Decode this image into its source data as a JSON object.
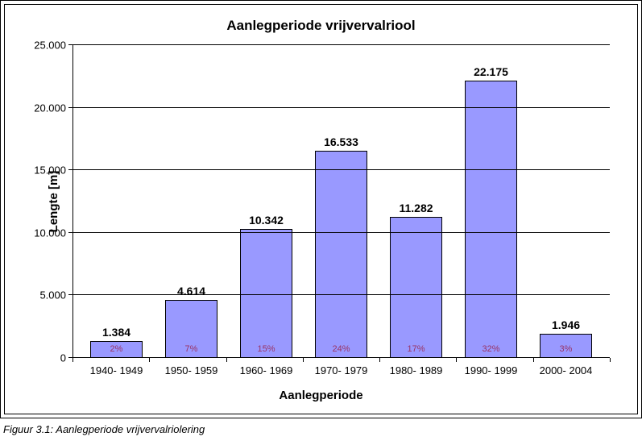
{
  "chart": {
    "type": "bar",
    "title": "Aanlegperiode  vrijvervalriool",
    "title_fontsize": 17,
    "xlabel": "Aanlegperiode",
    "ylabel": "Lengte [m]",
    "label_fontsize": 15,
    "ylim": [
      0,
      25000
    ],
    "ytick_step": 5000,
    "ytick_labels": [
      "0",
      "5.000",
      "10.000",
      "15.000",
      "20.000",
      "25.000"
    ],
    "categories": [
      "1940- 1949",
      "1950- 1959",
      "1960- 1969",
      "1970- 1979",
      "1980- 1989",
      "1990- 1999",
      "2000- 2004"
    ],
    "values": [
      1384,
      4614,
      10342,
      16533,
      11282,
      22175,
      1946
    ],
    "value_labels": [
      "1.384",
      "4.614",
      "10.342",
      "16.533",
      "11.282",
      "22.175",
      "1.946"
    ],
    "percentages": [
      "2%",
      "7%",
      "15%",
      "24%",
      "17%",
      "32%",
      "3%"
    ],
    "bar_color": "#9999ff",
    "bar_border_color": "#000000",
    "bar_width": 0.7,
    "grid_color": "#000000",
    "background_color": "#ffffff",
    "pct_text_color": "#993366",
    "tick_fontsize": 13,
    "value_fontsize": 14
  },
  "caption": "Figuur 3.1: Aanlegperiode vrijvervalriolering"
}
